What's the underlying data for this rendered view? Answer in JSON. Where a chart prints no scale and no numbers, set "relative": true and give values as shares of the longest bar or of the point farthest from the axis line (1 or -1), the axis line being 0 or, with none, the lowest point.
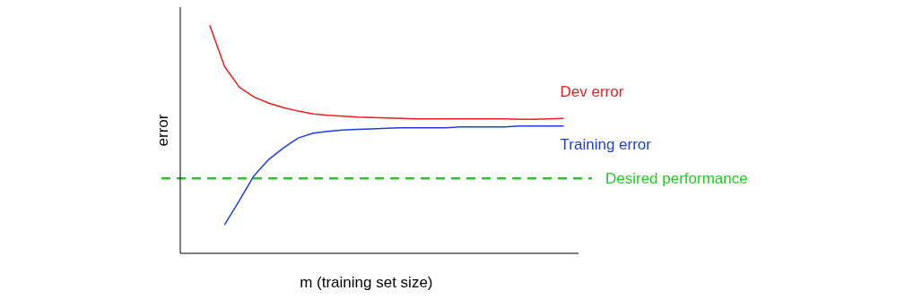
{
  "chart_data": {
    "type": "line",
    "relative": true,
    "xlabel": "m (training set size)",
    "ylabel": "error",
    "marker": "none",
    "line_style": "solid",
    "categories": [
      null,
      null,
      null,
      null,
      null,
      null,
      null,
      null,
      null,
      null,
      null,
      null,
      null,
      null,
      null,
      null,
      null,
      null,
      null,
      null,
      null,
      null,
      null,
      null,
      null
    ],
    "series": [
      {
        "name": "Dev error",
        "color": "#ee1c1c",
        "values": [
          1,
          0.82,
          0.729,
          0.686,
          0.659,
          0.639,
          0.624,
          0.612,
          0.606,
          0.602,
          0.598,
          0.596,
          0.594,
          0.592,
          0.59,
          0.59,
          0.59,
          0.59,
          0.59,
          0.59,
          0.59,
          0.588,
          0.588,
          0.59,
          0.592
        ]
      },
      {
        "name": "Training error",
        "color": "#1c3ce6",
        "values": [
          null,
          0.125,
          0.231,
          0.341,
          0.412,
          0.463,
          0.506,
          0.527,
          0.535,
          0.541,
          0.544,
          0.546,
          0.549,
          0.551,
          0.551,
          0.551,
          0.551,
          0.555,
          0.555,
          0.555,
          0.555,
          0.559,
          0.559,
          0.559,
          0.559
        ]
      }
    ],
    "ref_lines": [
      {
        "axis": "y",
        "value": 0.329,
        "label": "Desired performance",
        "color": "#22cc22",
        "line_style": "dashed"
      }
    ]
  }
}
